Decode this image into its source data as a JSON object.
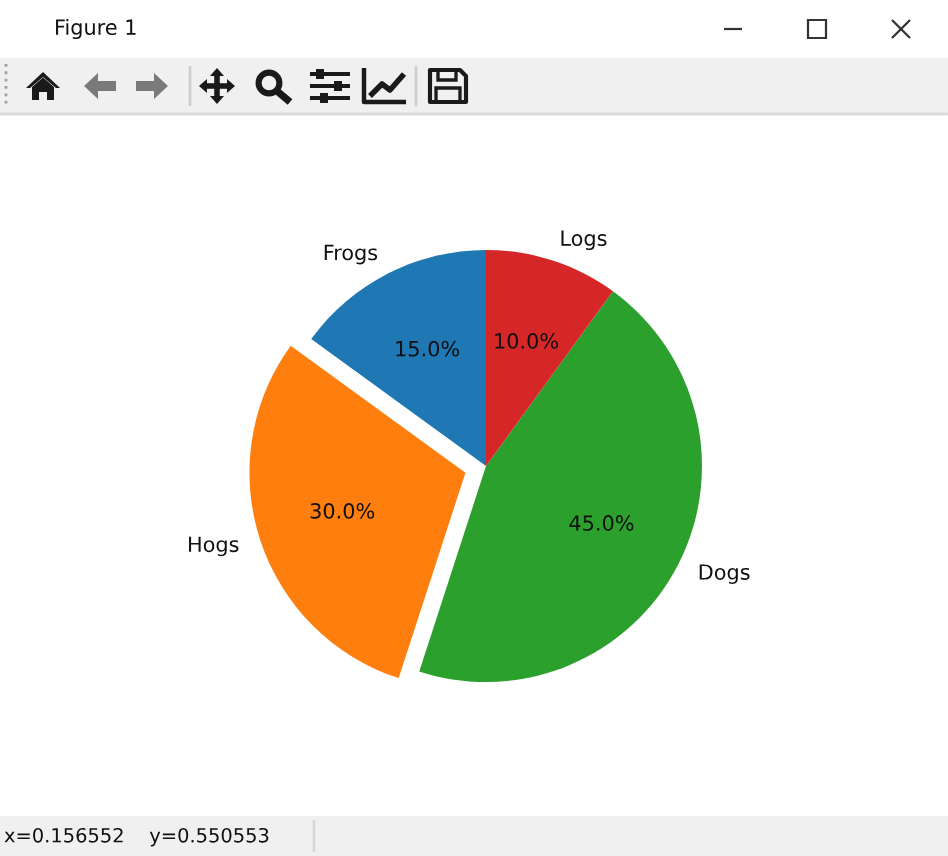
{
  "chart_data": {
    "type": "pie",
    "categories": [
      "Frogs",
      "Hogs",
      "Dogs",
      "Logs"
    ],
    "values": [
      15,
      30,
      45,
      10
    ],
    "colors": [
      "#1f77b4",
      "#ff7f0e",
      "#2ca02c",
      "#d62728"
    ],
    "value_labels": [
      "15.0%",
      "30.0%",
      "45.0%",
      "10.0%"
    ],
    "annotations": [
      "Figure 1",
      "x=0.156552    y=0.550553"
    ]
  }
}
